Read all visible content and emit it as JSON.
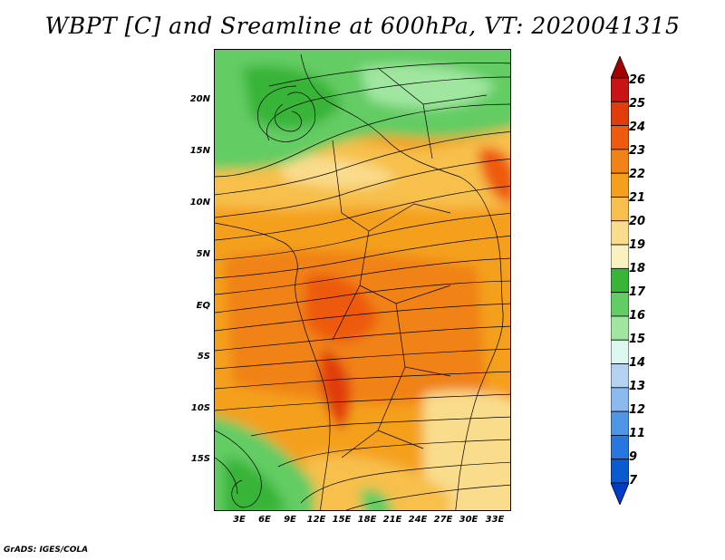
{
  "title": "WBPT [C] and Sreamline at 600hPa, VT: 2020041315",
  "footer": "GrADS: IGES/COLA",
  "map": {
    "variable": "wet-bulb potential temperature",
    "units": "C",
    "level": "600hPa",
    "valid_time": "2020041315",
    "lat_labels": [
      "20N",
      "15N",
      "10N",
      "5N",
      "EQ",
      "5S",
      "10S",
      "15S"
    ],
    "lon_labels": [
      "3E",
      "6E",
      "9E",
      "12E",
      "15E",
      "18E",
      "21E",
      "24E",
      "27E",
      "30E",
      "33E"
    ]
  },
  "colorbar": {
    "levels": [
      "26",
      "25",
      "24",
      "23",
      "22",
      "21",
      "20",
      "19",
      "18",
      "17",
      "16",
      "15",
      "14",
      "13",
      "12",
      "11",
      "9",
      "7"
    ],
    "colors": [
      "#a50000",
      "#c81414",
      "#e03c0c",
      "#ee5a10",
      "#f08216",
      "#f4a01e",
      "#f7c04c",
      "#f9dc8c",
      "#fbf0c0",
      "#38b438",
      "#64cc64",
      "#a0e6a0",
      "#dcf8f0",
      "#b4d2f0",
      "#8cbaf0",
      "#5096e6",
      "#2a76e0",
      "#0a5ad2",
      "#003cc8"
    ]
  }
}
